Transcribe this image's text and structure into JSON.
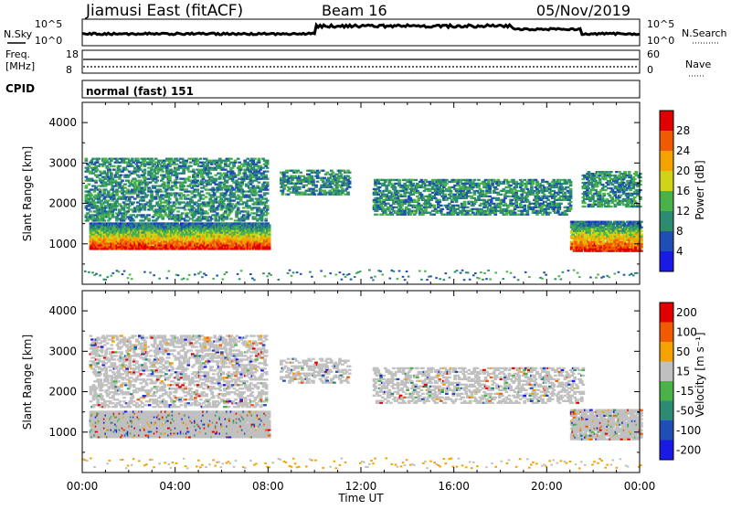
{
  "header": {
    "station": "Jiamusi East (fitACF)",
    "beam": "Beam 16",
    "date": "05/Nov/2019"
  },
  "nsky": {
    "label": "N.Sky",
    "tick_top": "10^5",
    "tick_bottom": "10^0",
    "right_label": "N.Search"
  },
  "freq": {
    "label_line1": "Freq.",
    "label_line2": "[MHz]",
    "tick_top": "18",
    "tick_bottom": "8",
    "right_tick_top": "60",
    "right_tick_bottom": "0",
    "right_label": "Nave"
  },
  "cpid": {
    "label": "CPID",
    "mode": "normal (fast) 151"
  },
  "chart_data": [
    {
      "type": "heatmap",
      "name": "power",
      "ylabel": "Slant Range [km]",
      "yticks": [
        1000,
        2000,
        3000,
        4000
      ],
      "ylim": [
        0,
        4500
      ],
      "xlim": [
        0,
        24
      ],
      "colorbar": {
        "label": "Power [dB]",
        "ticks": [
          4,
          8,
          12,
          16,
          20,
          24,
          28
        ],
        "colors": [
          "#1a1ae6",
          "#1f4fb4",
          "#2d8a73",
          "#49b34a",
          "#cfd418",
          "#f5a100",
          "#f05a00",
          "#e00000"
        ]
      },
      "regions": [
        {
          "t0": 0.1,
          "t1": 7.9,
          "r0": 1550,
          "r1": 3100,
          "level": 2,
          "density": 0.4
        },
        {
          "t0": 0.3,
          "t1": 8.0,
          "r0": 850,
          "r1": 1500,
          "level": 5,
          "density": 0.95
        },
        {
          "t0": 8.5,
          "t1": 11.5,
          "r0": 2200,
          "r1": 2800,
          "level": 2,
          "density": 0.4
        },
        {
          "t0": 12.5,
          "t1": 21.0,
          "r0": 1700,
          "r1": 2600,
          "level": 2,
          "density": 0.45
        },
        {
          "t0": 21.0,
          "t1": 24.0,
          "r0": 800,
          "r1": 1550,
          "level": 5,
          "density": 0.85
        },
        {
          "t0": 21.5,
          "t1": 24.0,
          "r0": 1900,
          "r1": 2800,
          "level": 2,
          "density": 0.45
        }
      ]
    },
    {
      "type": "heatmap",
      "name": "velocity",
      "ylabel": "Slant Range [km]",
      "xlabel": "Time UT",
      "yticks": [
        1000,
        2000,
        3000,
        4000
      ],
      "xticks": [
        "00:00",
        "04:00",
        "08:00",
        "12:00",
        "16:00",
        "20:00",
        "00:00"
      ],
      "ylim": [
        0,
        4500
      ],
      "xlim": [
        0,
        24
      ],
      "colorbar": {
        "label": "Velocity [m s⁻¹]",
        "ticks": [
          200,
          100,
          50,
          15,
          -15,
          -50,
          -100,
          -200
        ],
        "colors": [
          "#1a1ae6",
          "#1f4fb4",
          "#2d8a73",
          "#49b34a",
          "#c0c0c0",
          "#f5a100",
          "#f05a00",
          "#e00000"
        ]
      },
      "regions": [
        {
          "t0": 0.3,
          "t1": 8.0,
          "r0": 850,
          "r1": 1500,
          "value": 0,
          "density": 0.95
        },
        {
          "t0": 0.3,
          "t1": 7.9,
          "r0": 1600,
          "r1": 3400,
          "value": 0,
          "density": 0.35
        },
        {
          "t0": 8.5,
          "t1": 11.5,
          "r0": 2200,
          "r1": 2800,
          "value": 0,
          "density": 0.35
        },
        {
          "t0": 12.5,
          "t1": 21.5,
          "r0": 1700,
          "r1": 2600,
          "value": 0,
          "density": 0.35
        },
        {
          "t0": 21.0,
          "t1": 24.0,
          "r0": 800,
          "r1": 1550,
          "value": 0,
          "density": 0.8
        }
      ]
    }
  ]
}
